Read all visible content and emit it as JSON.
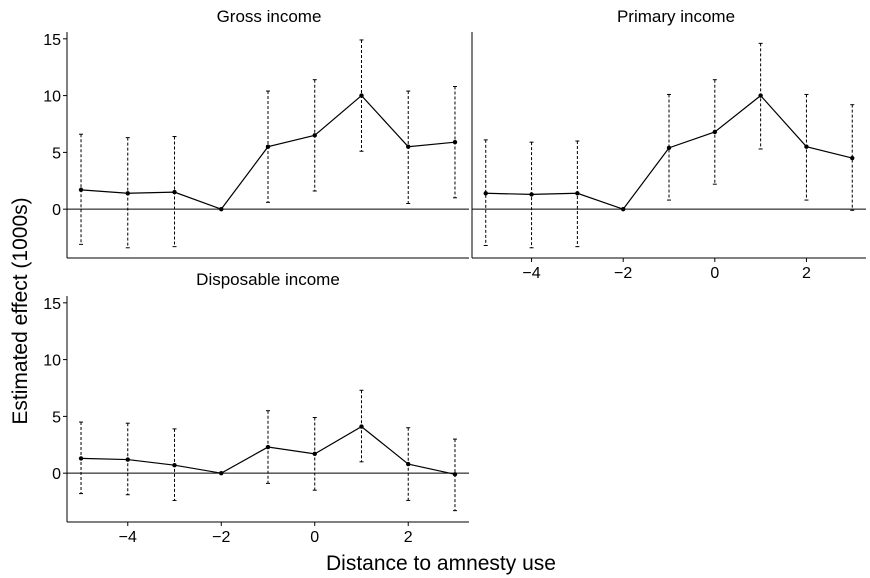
{
  "figure": {
    "ylabel": "Estimated effect (1000s)",
    "xlabel": "Distance to amnesty use"
  },
  "chart_data": [
    {
      "type": "line",
      "title": "Gross income",
      "xlabel": "",
      "ylabel": "",
      "xlim": [
        -5.3,
        3.3
      ],
      "ylim": [
        -4.3,
        15.6
      ],
      "yticks": [
        0,
        5,
        10,
        15
      ],
      "xticks": [],
      "grid": false,
      "x": [
        -5,
        -4,
        -3,
        -2,
        -1,
        0,
        1,
        2,
        3
      ],
      "series": [
        {
          "values": [
            1.7,
            1.4,
            1.5,
            0.0,
            5.5,
            6.5,
            10.0,
            5.5,
            5.9
          ],
          "lower": [
            -3.1,
            -3.4,
            -3.3,
            0.0,
            0.6,
            1.6,
            5.1,
            0.5,
            1.0
          ],
          "upper": [
            6.6,
            6.3,
            6.4,
            0.0,
            10.4,
            11.4,
            14.9,
            10.4,
            10.8
          ]
        }
      ],
      "zero_line": true
    },
    {
      "type": "line",
      "title": "Primary income",
      "xlabel": "",
      "ylabel": "",
      "xlim": [
        -5.3,
        3.3
      ],
      "ylim": [
        -4.3,
        15.6
      ],
      "yticks": [],
      "xticks": [
        -4,
        -2,
        0,
        2
      ],
      "xticklabels": [
        "−4",
        "−2",
        "0",
        "2"
      ],
      "grid": false,
      "x": [
        -5,
        -4,
        -3,
        -2,
        -1,
        0,
        1,
        2,
        3
      ],
      "series": [
        {
          "values": [
            1.4,
            1.3,
            1.4,
            0.0,
            5.4,
            6.8,
            10.0,
            5.5,
            4.5
          ],
          "lower": [
            -3.2,
            -3.4,
            -3.3,
            0.0,
            0.8,
            2.2,
            5.3,
            0.8,
            -0.1
          ],
          "upper": [
            6.1,
            5.9,
            6.0,
            0.0,
            10.1,
            11.4,
            14.6,
            10.1,
            9.2
          ]
        }
      ],
      "zero_line": true
    },
    {
      "type": "line",
      "title": "Disposable income",
      "xlabel": "",
      "ylabel": "",
      "xlim": [
        -5.3,
        3.3
      ],
      "ylim": [
        -4.3,
        15.6
      ],
      "yticks": [
        0,
        5,
        10,
        15
      ],
      "xticks": [
        -4,
        -2,
        0,
        2
      ],
      "xticklabels": [
        "−4",
        "−2",
        "0",
        "2"
      ],
      "grid": false,
      "x": [
        -5,
        -4,
        -3,
        -2,
        -1,
        0,
        1,
        2,
        3
      ],
      "series": [
        {
          "values": [
            1.3,
            1.2,
            0.7,
            0.0,
            2.3,
            1.7,
            4.1,
            0.8,
            -0.1
          ],
          "lower": [
            -1.8,
            -1.9,
            -2.4,
            0.0,
            -0.9,
            -1.5,
            1.0,
            -2.4,
            -3.3
          ],
          "upper": [
            4.5,
            4.4,
            3.9,
            0.0,
            5.5,
            4.9,
            7.3,
            4.0,
            3.0
          ]
        }
      ],
      "zero_line": true
    }
  ]
}
